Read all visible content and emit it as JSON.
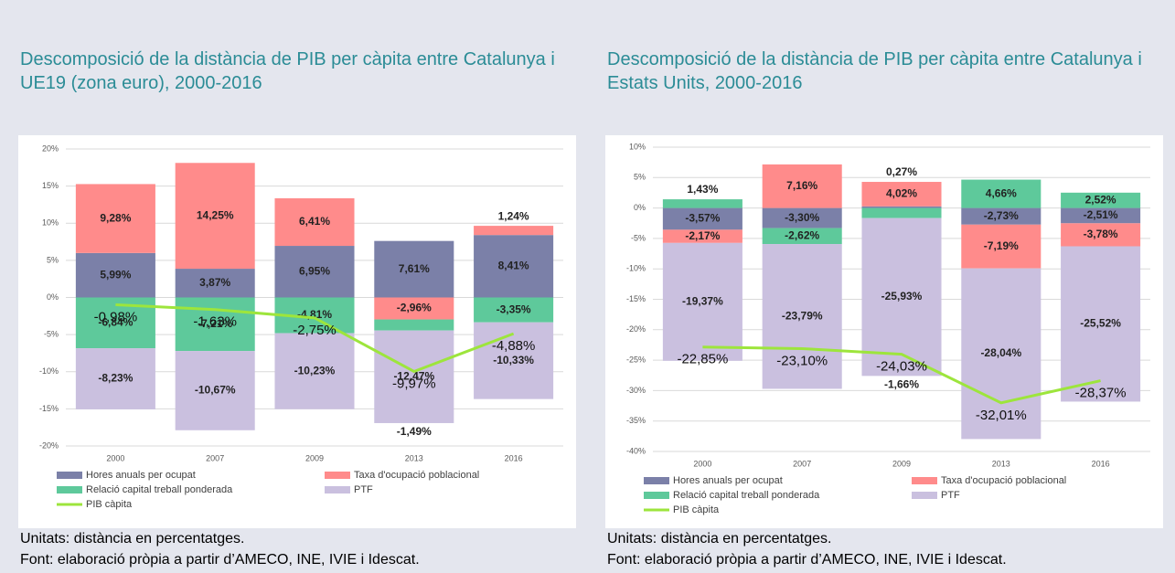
{
  "chart_data": [
    {
      "type": "bar",
      "stacked": true,
      "title": "Descomposició de la distància de PIB per càpita entre Catalunya i UE19 (zona euro), 2000-2016",
      "note": "Unitats: distància en percentatges.",
      "source": "Font: elaboració pròpia a partir d’AMECO, INE, IVIE i Idescat.",
      "categories": [
        "2000",
        "2007",
        "2009",
        "2013",
        "2016"
      ],
      "ylim": [
        -20,
        20
      ],
      "yticks": [
        {
          "value": -20,
          "label": "-20%"
        },
        {
          "value": -15,
          "label": "-15%"
        },
        {
          "value": -10,
          "label": "-10%"
        },
        {
          "value": -5,
          "label": "-5%"
        },
        {
          "value": 0,
          "label": "0%"
        },
        {
          "value": 5,
          "label": "5%"
        },
        {
          "value": 10,
          "label": "10%"
        },
        {
          "value": 15,
          "label": "15%"
        },
        {
          "value": 20,
          "label": "20%"
        }
      ],
      "grid": true,
      "series": [
        {
          "name": "Hores anuals per ocupat",
          "color": "#7b80a8",
          "values": [
            5.99,
            3.87,
            6.95,
            7.61,
            8.41
          ],
          "value_labels": [
            "5,99%",
            "3,87%",
            "6,95%",
            "7,61%",
            "8,41%"
          ]
        },
        {
          "name": "Taxa d'ocupació poblacional",
          "color": "#ff8b8b",
          "values": [
            9.28,
            14.25,
            6.41,
            -2.96,
            1.24
          ],
          "value_labels": [
            "9,28%",
            "14,25%",
            "6,41%",
            "-2,96%",
            "1,24%"
          ]
        },
        {
          "name": "Relació capital treball ponderada",
          "color": "#5ec99b",
          "values": [
            -6.84,
            -7.21,
            -4.81,
            -1.49,
            -3.35
          ],
          "value_labels": [
            "-6,84%",
            "-7,21%",
            "-4,81%",
            "-1,49%",
            "-3,35%"
          ]
        },
        {
          "name": "PTF",
          "color": "#cac0df",
          "values": [
            -8.23,
            -10.67,
            -10.23,
            -12.47,
            -10.33
          ],
          "value_labels": [
            "-8,23%",
            "-10,67%",
            "-10,23%",
            "-12,47%",
            "-10,33%"
          ]
        },
        {
          "name": "PIB càpita",
          "type": "line",
          "color": "#9de53c",
          "values": [
            -0.98,
            -1.63,
            -2.75,
            -9.97,
            -4.88
          ],
          "value_labels": [
            "-0,98%",
            "-1,63%",
            "-2,75%",
            "-9,97%",
            "-4,88%"
          ]
        }
      ]
    },
    {
      "type": "bar",
      "stacked": true,
      "title": "Descomposició de la distància de PIB per càpita entre Catalunya i Estats Units, 2000-2016",
      "note": "Unitats: distància en percentatges.",
      "source": "Font: elaboració pròpia a partir d’AMECO, INE, IVIE i Idescat.",
      "categories": [
        "2000",
        "2007",
        "2009",
        "2013",
        "2016"
      ],
      "ylim": [
        -40,
        10
      ],
      "yticks": [
        {
          "value": -40,
          "label": "-40%"
        },
        {
          "value": -35,
          "label": "-35%"
        },
        {
          "value": -30,
          "label": "-30%"
        },
        {
          "value": -25,
          "label": "-25%"
        },
        {
          "value": -20,
          "label": "-20%"
        },
        {
          "value": -15,
          "label": "-15%"
        },
        {
          "value": -10,
          "label": "-10%"
        },
        {
          "value": -5,
          "label": "-5%"
        },
        {
          "value": 0,
          "label": "0%"
        },
        {
          "value": 5,
          "label": "5%"
        },
        {
          "value": 10,
          "label": "10%"
        }
      ],
      "grid": true,
      "series": [
        {
          "name": "Hores anuals per ocupat",
          "color": "#7b80a8",
          "values": [
            -3.57,
            -3.3,
            0.27,
            -2.73,
            -2.51
          ],
          "value_labels": [
            "-3,57%",
            "-3,30%",
            "0,27%",
            "-2,73%",
            "-2,51%"
          ]
        },
        {
          "name": "Taxa d'ocupació poblacional",
          "color": "#ff8b8b",
          "values": [
            -2.17,
            7.16,
            4.02,
            -7.19,
            -3.78
          ],
          "value_labels": [
            "-2,17%",
            "7,16%",
            "4,02%",
            "-7,19%",
            "-3,78%"
          ]
        },
        {
          "name": "Relació capital treball ponderada",
          "color": "#5ec99b",
          "values": [
            1.43,
            -2.62,
            -1.66,
            4.66,
            2.52
          ],
          "value_labels": [
            "1,43%",
            "-2,62%",
            "-1,66%",
            "4,66%",
            "2,52%"
          ]
        },
        {
          "name": "PTF",
          "color": "#cac0df",
          "values": [
            -19.37,
            -23.79,
            -25.93,
            -28.04,
            -25.52
          ],
          "value_labels": [
            "-19,37%",
            "-23,79%",
            "-25,93%",
            "-28,04%",
            "-25,52%"
          ]
        },
        {
          "name": "PIB càpita",
          "type": "line",
          "color": "#9de53c",
          "values": [
            -22.85,
            -23.1,
            -24.03,
            -32.01,
            -28.37
          ],
          "value_labels": [
            "-22,85%",
            "-23,10%",
            "-24,03%",
            "-32,01%",
            "-28,37%"
          ]
        }
      ]
    }
  ]
}
